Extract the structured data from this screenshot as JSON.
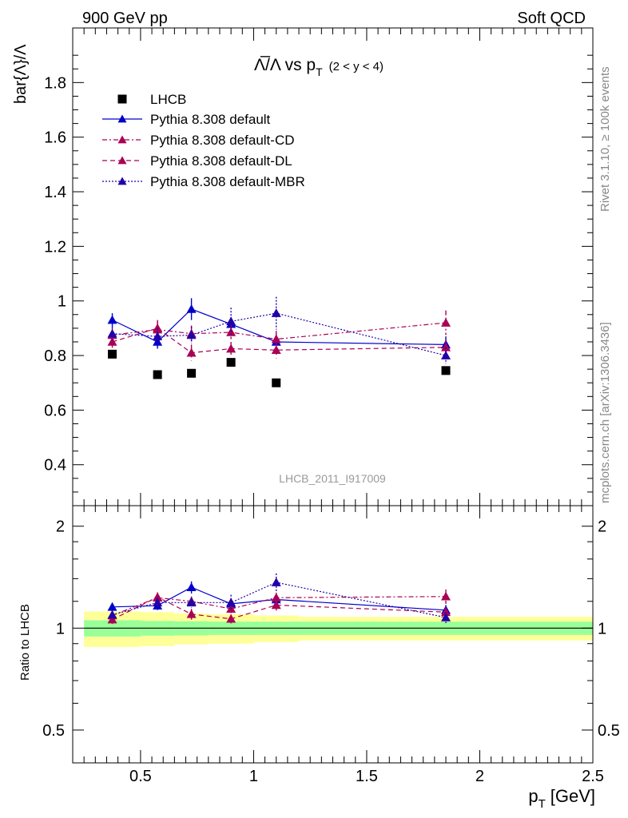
{
  "header": {
    "left": "900 GeV pp",
    "right": "Soft QCD"
  },
  "side_labels": {
    "rivet": "Rivet 3.1.10, ≥ 100k events",
    "mcplots": "mcplots.cern.ch [arXiv:1306.3436]"
  },
  "chart_data": {
    "type": "scatter",
    "title": "Λ̅/Λ vs p_T (2 < y < 4)",
    "title_main": "Λ̅/Λ vs p",
    "title_sub": "T",
    "title_range": "(2 < y < 4)",
    "analysis_id": "LHCB_2011_I917009",
    "ylabel": "bar{Λ}/Λ",
    "ylabel_ratio": "Ratio to LHCB",
    "xlabel": "p",
    "xlabel_sub": "T",
    "xlabel_unit": "[GeV]",
    "xlim": [
      0.2,
      2.5
    ],
    "ylim": [
      0.25,
      2.0
    ],
    "ratio_ylim": [
      0.4,
      2.3
    ],
    "ratio_scale": "log",
    "xticks": [
      0.5,
      1,
      1.5,
      2,
      2.5
    ],
    "xtick_labels": [
      "0.5",
      "1",
      "1.5",
      "2",
      "2.5"
    ],
    "yticks": [
      0.4,
      0.6,
      0.8,
      1,
      1.2,
      1.4,
      1.6,
      1.8
    ],
    "ytick_labels": [
      "0.4",
      "0.6",
      "0.8",
      "1",
      "1.2",
      "1.4",
      "1.6",
      "1.8"
    ],
    "ratio_yticks": [
      0.5,
      1,
      2
    ],
    "ratio_ytick_labels": [
      "0.5",
      "1",
      "2"
    ],
    "legend_position": "top-left",
    "data_series": {
      "name": "LHCB",
      "x": [
        0.375,
        0.575,
        0.725,
        0.9,
        1.1,
        1.85
      ],
      "y": [
        0.805,
        0.73,
        0.735,
        0.775,
        0.7,
        0.745
      ]
    },
    "ratio_band_bins": [
      {
        "x0": 0.25,
        "x1": 0.5,
        "inner": 0.055,
        "outer": 0.12
      },
      {
        "x0": 0.5,
        "x1": 0.65,
        "inner": 0.05,
        "outer": 0.115
      },
      {
        "x0": 0.65,
        "x1": 0.8,
        "inner": 0.048,
        "outer": 0.105
      },
      {
        "x0": 0.8,
        "x1": 1.0,
        "inner": 0.045,
        "outer": 0.1
      },
      {
        "x0": 1.0,
        "x1": 1.2,
        "inner": 0.045,
        "outer": 0.09
      },
      {
        "x0": 1.2,
        "x1": 2.5,
        "inner": 0.045,
        "outer": 0.08
      }
    ],
    "series": [
      {
        "name": "Pythia 8.308 default",
        "color": "#0000cc",
        "dash": "",
        "x": [
          0.375,
          0.575,
          0.725,
          0.9,
          1.1,
          1.85
        ],
        "y": [
          0.93,
          0.85,
          0.97,
          0.915,
          0.85,
          0.84
        ],
        "err": [
          0.025,
          0.025,
          0.04,
          0.025,
          0.03,
          0.03
        ],
        "ratio": [
          1.155,
          1.165,
          1.32,
          1.18,
          1.215,
          1.13
        ]
      },
      {
        "name": "Pythia 8.308 default-CD",
        "color": "#aa0055",
        "dash": "6,3,2,3",
        "x": [
          0.375,
          0.575,
          0.725,
          0.9,
          1.1,
          1.85
        ],
        "y": [
          0.875,
          0.895,
          0.88,
          0.885,
          0.86,
          0.92
        ],
        "err": [
          0.025,
          0.03,
          0.03,
          0.025,
          0.03,
          0.045
        ],
        "ratio": [
          1.09,
          1.23,
          1.2,
          1.14,
          1.23,
          1.24
        ]
      },
      {
        "name": "Pythia 8.308 default-DL",
        "color": "#aa0055",
        "dash": "6,4",
        "x": [
          0.375,
          0.575,
          0.725,
          0.9,
          1.1,
          1.85
        ],
        "y": [
          0.85,
          0.9,
          0.81,
          0.825,
          0.82,
          0.83
        ],
        "err": [
          0.025,
          0.03,
          0.03,
          0.025,
          0.03,
          0.03
        ],
        "ratio": [
          1.06,
          1.235,
          1.1,
          1.065,
          1.17,
          1.115
        ]
      },
      {
        "name": "Pythia 8.308 default-MBR",
        "color": "#2200aa",
        "dash": "2,2",
        "x": [
          0.375,
          0.575,
          0.725,
          0.9,
          1.1,
          1.85
        ],
        "y": [
          0.88,
          0.87,
          0.875,
          0.925,
          0.955,
          0.8
        ],
        "err": [
          0.025,
          0.03,
          0.03,
          0.05,
          0.06,
          0.03
        ],
        "ratio": [
          1.095,
          1.19,
          1.19,
          1.19,
          1.365,
          1.075
        ]
      }
    ]
  }
}
